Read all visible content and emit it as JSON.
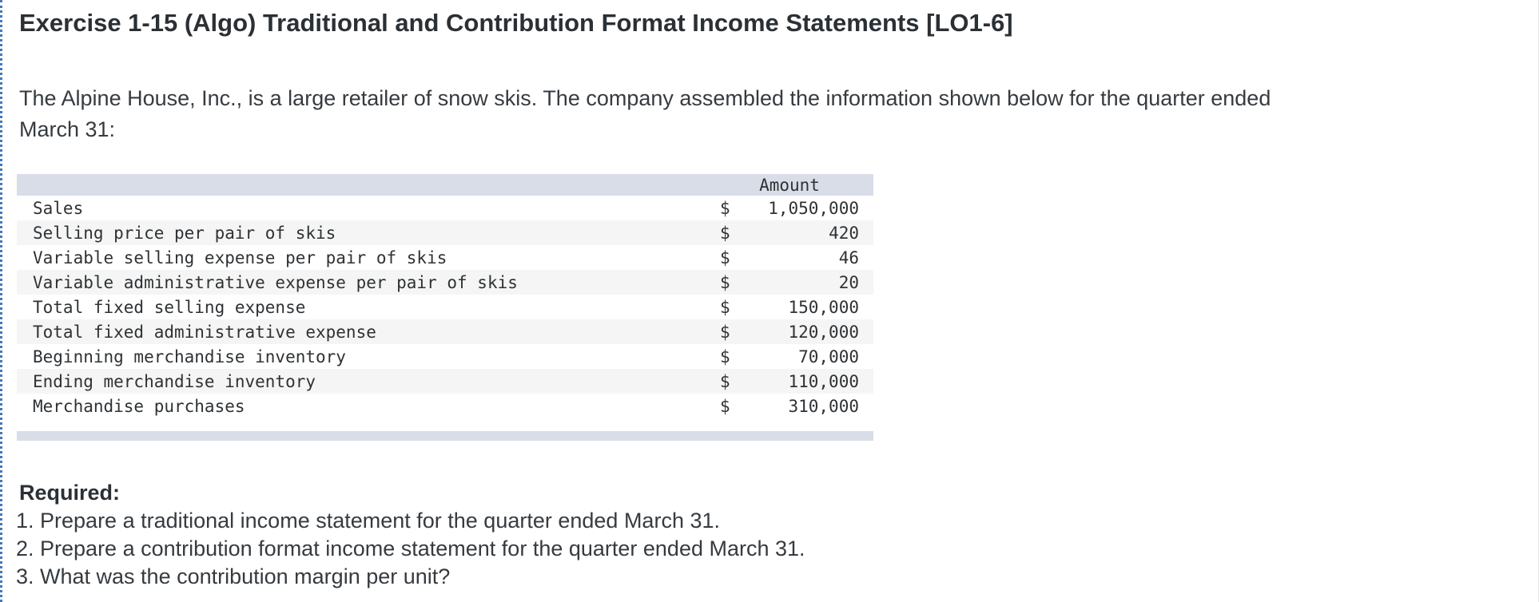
{
  "exercise": {
    "title": "Exercise 1-15 (Algo) Traditional and Contribution Format Income Statements [LO1-6]",
    "intro": {
      "line1": "The Alpine House, Inc., is a large retailer of snow skis. The company assembled the information shown below for the quarter ended",
      "line2": "March 31:"
    }
  },
  "table": {
    "header": "Amount",
    "rows": [
      {
        "label": "Sales",
        "currency": "$",
        "amount": "1,050,000"
      },
      {
        "label": "Selling price per pair of skis",
        "currency": "$",
        "amount": "420"
      },
      {
        "label": "Variable selling expense per pair of skis",
        "currency": "$",
        "amount": "46"
      },
      {
        "label": "Variable administrative expense per pair of skis",
        "currency": "$",
        "amount": "20"
      },
      {
        "label": "Total fixed selling expense",
        "currency": "$",
        "amount": "150,000"
      },
      {
        "label": "Total fixed administrative expense",
        "currency": "$",
        "amount": "120,000"
      },
      {
        "label": "Beginning merchandise inventory",
        "currency": "$",
        "amount": "70,000"
      },
      {
        "label": "Ending merchandise inventory",
        "currency": "$",
        "amount": "110,000"
      },
      {
        "label": "Merchandise purchases",
        "currency": "$",
        "amount": "310,000"
      }
    ]
  },
  "required": {
    "heading": "Required:",
    "items": [
      "1. Prepare a traditional income statement for the quarter ended March 31.",
      "2. Prepare a contribution format income statement for the quarter ended March 31.",
      "3. What was the contribution margin per unit?"
    ]
  },
  "colors": {
    "accent_dotted_border": "#4377b9",
    "table_band": "#d8dde8",
    "row_alt": "#f5f5f5",
    "title_text": "#2b3035",
    "body_text": "#363b40"
  }
}
